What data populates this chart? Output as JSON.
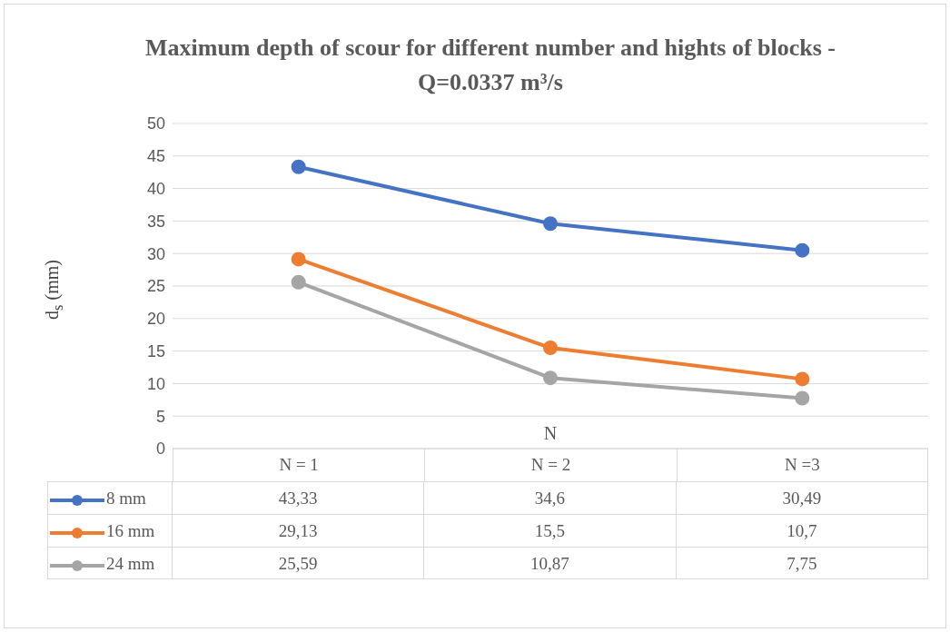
{
  "chart_data": {
    "type": "line",
    "title": "Maximum depth of scour for different number and hights of blocks - Q=0.0337 m³/s",
    "xlabel": "N",
    "ylabel": "d$_{s}$ (mm)",
    "categories": [
      "N = 1",
      "N = 2",
      "N =3"
    ],
    "series": [
      {
        "name": "8 mm",
        "color": "#4472c4",
        "values": [
          43.33,
          34.6,
          30.49
        ],
        "value_labels": [
          "43,33",
          "34,6",
          "30,49"
        ]
      },
      {
        "name": "16 mm",
        "color": "#ed7d31",
        "values": [
          29.13,
          15.5,
          10.7
        ],
        "value_labels": [
          "29,13",
          "15,5",
          "10,7"
        ]
      },
      {
        "name": "24 mm",
        "color": "#a5a5a5",
        "values": [
          25.59,
          10.87,
          7.75
        ],
        "value_labels": [
          "25,59",
          "10,87",
          "7,75"
        ]
      }
    ],
    "ylim": [
      0,
      50
    ],
    "yticks": [
      0,
      5,
      10,
      15,
      20,
      25,
      30,
      35,
      40,
      45,
      50
    ],
    "grid": "y",
    "legend": "bottom",
    "marker": "circle",
    "line_style": "solid"
  }
}
